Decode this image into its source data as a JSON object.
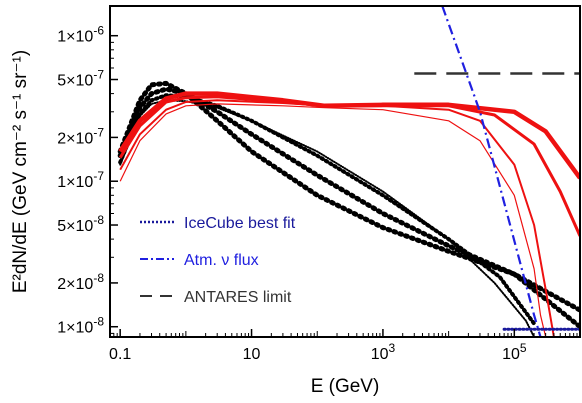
{
  "chart_data": {
    "type": "line",
    "title": "",
    "xlabel": "E (GeV)",
    "ylabel": "E²dN/dE (GeV cm⁻² s⁻¹ sr⁻¹)",
    "xscale": "log",
    "yscale": "log",
    "xlim": [
      0.07,
      1000000
    ],
    "ylim": [
      8.5e-09,
      1.6e-06
    ],
    "grid": false,
    "legend_position": "bottom-left",
    "xticks": [
      {
        "value": 0.1,
        "label": "0.1"
      },
      {
        "value": 10,
        "label": "10"
      },
      {
        "value": 1000,
        "base": "10",
        "exp": "3"
      },
      {
        "value": 100000,
        "base": "10",
        "exp": "5"
      }
    ],
    "yticks": [
      {
        "value": 1e-06,
        "base": "1×10",
        "exp": "-6"
      },
      {
        "value": 5e-07,
        "base": "5×10",
        "exp": "-7"
      },
      {
        "value": 2e-07,
        "base": "2×10",
        "exp": "-7"
      },
      {
        "value": 1e-07,
        "base": "1×10",
        "exp": "-7"
      },
      {
        "value": 5e-08,
        "base": "5×10",
        "exp": "-8"
      },
      {
        "value": 2e-08,
        "base": "2×10",
        "exp": "-8"
      },
      {
        "value": 1e-08,
        "base": "1×10",
        "exp": "-8"
      }
    ],
    "legend": [
      {
        "label": "IceCube best fit",
        "color": "#1a1a9c",
        "style": "dotted",
        "text_color": "#1a1a9c"
      },
      {
        "label": "Atm. ν flux",
        "color": "#2020e0",
        "style": "dashdot",
        "text_color": "#2020e0"
      },
      {
        "label": "ANTARES limit",
        "color": "#333333",
        "style": "dashed",
        "text_color": "#333333"
      }
    ],
    "series": [
      {
        "group": "model-black-dotted",
        "color": "#000000",
        "style": "dotted",
        "width": 5,
        "points": [
          [
            0.1,
            1.6e-07
          ],
          [
            0.2,
            3.6e-07
          ],
          [
            0.3,
            4.6e-07
          ],
          [
            0.5,
            4.7e-07
          ],
          [
            1,
            4e-07
          ],
          [
            3,
            2.6e-07
          ],
          [
            10,
            1.6e-07
          ],
          [
            100,
            8e-08
          ],
          [
            1000,
            4.8e-08
          ],
          [
            10000,
            3.3e-08
          ],
          [
            100000,
            2.3e-08
          ],
          [
            1000000,
            1.3e-08
          ]
        ]
      },
      {
        "group": "model-black-dotted",
        "color": "#000000",
        "style": "dotted",
        "width": 5,
        "points": [
          [
            0.1,
            1.5e-07
          ],
          [
            0.2,
            3.2e-07
          ],
          [
            0.3,
            4e-07
          ],
          [
            0.5,
            4.3e-07
          ],
          [
            1,
            4e-07
          ],
          [
            3,
            3e-07
          ],
          [
            10,
            2.1e-07
          ],
          [
            100,
            1.1e-07
          ],
          [
            1000,
            6e-08
          ],
          [
            10000,
            3.6e-08
          ],
          [
            100000,
            2.3e-08
          ],
          [
            1000000,
            1e-08
          ]
        ]
      },
      {
        "group": "model-black-dotted",
        "color": "#000000",
        "style": "dotted",
        "width": 4,
        "points": [
          [
            0.1,
            1.35e-07
          ],
          [
            0.2,
            2.9e-07
          ],
          [
            0.3,
            3.6e-07
          ],
          [
            0.5,
            3.9e-07
          ],
          [
            1,
            3.8e-07
          ],
          [
            3,
            3.3e-07
          ],
          [
            10,
            2.6e-07
          ],
          [
            100,
            1.5e-07
          ],
          [
            1000,
            8e-08
          ],
          [
            10000,
            4e-08
          ],
          [
            60000,
            2.2e-08
          ],
          [
            200000,
            1.05e-08
          ]
        ]
      },
      {
        "group": "model-black-dotted",
        "color": "#000000",
        "style": "dotted",
        "width": 2,
        "points": [
          [
            0.1,
            1.3e-07
          ],
          [
            0.2,
            2.8e-07
          ],
          [
            0.3,
            3.4e-07
          ],
          [
            0.5,
            3.6e-07
          ],
          [
            1,
            3.55e-07
          ],
          [
            3,
            3.2e-07
          ],
          [
            10,
            2.6e-07
          ],
          [
            100,
            1.6e-07
          ],
          [
            1000,
            8.5e-08
          ],
          [
            10000,
            4e-08
          ],
          [
            50000,
            2e-08
          ],
          [
            150000,
            1.1e-08
          ],
          [
            200000,
            8.5e-09
          ]
        ]
      },
      {
        "group": "model-red",
        "color": "#ee1111",
        "style": "solid",
        "width": 4.5,
        "points": [
          [
            0.1,
            1.6e-07
          ],
          [
            0.2,
            2.6e-07
          ],
          [
            0.5,
            3.7e-07
          ],
          [
            1,
            4e-07
          ],
          [
            3,
            4e-07
          ],
          [
            30,
            3.6e-07
          ],
          [
            130,
            3.3e-07
          ],
          [
            1000,
            3.35e-07
          ],
          [
            10000,
            3.35e-07
          ],
          [
            100000,
            3e-07
          ],
          [
            300000,
            2.2e-07
          ],
          [
            1000000,
            1.05e-07
          ]
        ]
      },
      {
        "group": "model-red",
        "color": "#ee1111",
        "style": "solid",
        "width": 3,
        "points": [
          [
            0.1,
            1.45e-07
          ],
          [
            0.2,
            2.4e-07
          ],
          [
            0.5,
            3.5e-07
          ],
          [
            1,
            3.75e-07
          ],
          [
            3,
            3.8e-07
          ],
          [
            30,
            3.5e-07
          ],
          [
            130,
            3.3e-07
          ],
          [
            1000,
            3.3e-07
          ],
          [
            10000,
            3.3e-07
          ],
          [
            50000,
            2.85e-07
          ],
          [
            200000,
            1.8e-07
          ],
          [
            500000,
            8.5e-08
          ],
          [
            1000000,
            4.2e-08
          ]
        ]
      },
      {
        "group": "model-red",
        "color": "#ee1111",
        "style": "solid",
        "width": 2,
        "points": [
          [
            0.1,
            1.2e-07
          ],
          [
            0.2,
            2.1e-07
          ],
          [
            0.5,
            3.1e-07
          ],
          [
            1,
            3.5e-07
          ],
          [
            3,
            3.6e-07
          ],
          [
            30,
            3.45e-07
          ],
          [
            130,
            3.3e-07
          ],
          [
            1000,
            3.3e-07
          ],
          [
            10000,
            3.1e-07
          ],
          [
            30000,
            2.6e-07
          ],
          [
            100000,
            1.3e-07
          ],
          [
            200000,
            5e-08
          ],
          [
            300000,
            1.8e-08
          ],
          [
            400000,
            8.5e-09
          ]
        ]
      },
      {
        "group": "model-red",
        "color": "#ee1111",
        "style": "solid",
        "width": 1.2,
        "points": [
          [
            0.1,
            1e-07
          ],
          [
            0.2,
            1.9e-07
          ],
          [
            0.5,
            2.9e-07
          ],
          [
            1,
            3.3e-07
          ],
          [
            3,
            3.4e-07
          ],
          [
            30,
            3.3e-07
          ],
          [
            130,
            3.2e-07
          ],
          [
            1000,
            3.1e-07
          ],
          [
            10000,
            2.6e-07
          ],
          [
            30000,
            1.9e-07
          ],
          [
            100000,
            8e-08
          ],
          [
            200000,
            2.5e-08
          ],
          [
            250000,
            1.2e-08
          ],
          [
            300000,
            8.5e-09
          ]
        ]
      },
      {
        "group": "atm-nu",
        "color": "#2020e0",
        "style": "dashdot",
        "width": 2.2,
        "points": [
          [
            8000,
            1.6e-06
          ],
          [
            30000,
            3e-07
          ],
          [
            200000,
            1.2e-08
          ],
          [
            250000,
            8.5e-09
          ]
        ]
      },
      {
        "group": "antares",
        "color": "#333333",
        "style": "dashed",
        "width": 2.5,
        "points": [
          [
            3000,
            5.5e-07
          ],
          [
            1000000,
            5.5e-07
          ]
        ]
      },
      {
        "group": "icecube",
        "color": "#1a1a9c",
        "style": "dotted",
        "width": 3,
        "points": [
          [
            70000,
            9.6e-09
          ],
          [
            1000000,
            9.6e-09
          ]
        ]
      }
    ]
  }
}
